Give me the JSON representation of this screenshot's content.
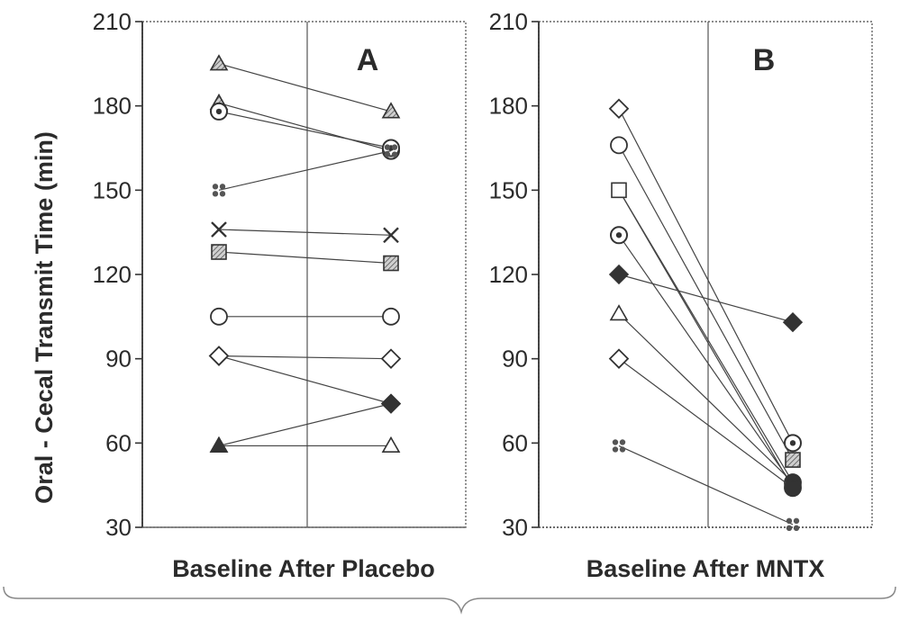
{
  "y_axis_label": "Oral - Cecal Transmit Time (min)",
  "chart_data": [
    {
      "type": "line",
      "panel_label": "A",
      "categories": [
        "Baseline",
        "After Placebo"
      ],
      "x_axis_text": "Baseline After Placebo",
      "yticks": [
        30,
        60,
        90,
        120,
        150,
        180,
        210
      ],
      "ylim": [
        30,
        210
      ],
      "series": [
        {
          "values": [
            195,
            178
          ],
          "marker": "triangle-hatched",
          "baseline_marker": "triangle-hatched"
        },
        {
          "values": [
            181,
            164
          ],
          "marker": "circle-dot",
          "baseline_marker": "triangle-hatched"
        },
        {
          "values": [
            178,
            165
          ],
          "marker": "circle-dot",
          "baseline_marker": "circle-dot"
        },
        {
          "values": [
            150,
            164
          ],
          "marker": "cross4",
          "baseline_marker": "cross4"
        },
        {
          "values": [
            136,
            134
          ],
          "marker": "x",
          "baseline_marker": "x"
        },
        {
          "values": [
            128,
            124
          ],
          "marker": "square-hatched",
          "baseline_marker": "square-hatched"
        },
        {
          "values": [
            105,
            105
          ],
          "marker": "circle-open",
          "baseline_marker": "circle-open"
        },
        {
          "values": [
            91,
            90
          ],
          "marker": "diamond-open",
          "baseline_marker": "diamond-open"
        },
        {
          "values": [
            91,
            74
          ],
          "marker": "diamond-filled",
          "baseline_marker": "diamond-open"
        },
        {
          "values": [
            59,
            74
          ],
          "marker": "diamond-filled",
          "baseline_marker": "triangle-filled"
        },
        {
          "values": [
            59,
            59
          ],
          "marker": "triangle-open",
          "baseline_marker": "triangle-filled"
        }
      ]
    },
    {
      "type": "line",
      "panel_label": "B",
      "categories": [
        "Baseline",
        "After MNTX"
      ],
      "x_axis_text": "Baseline After MNTX",
      "yticks": [
        30,
        60,
        90,
        120,
        150,
        180,
        210
      ],
      "ylim": [
        30,
        210
      ],
      "series": [
        {
          "values": [
            179,
            60
          ],
          "marker": "circle-dot",
          "baseline_marker": "diamond-open"
        },
        {
          "values": [
            166,
            54
          ],
          "marker": "square-hatched",
          "baseline_marker": "circle-open"
        },
        {
          "values": [
            150,
            46
          ],
          "marker": "circle-filled",
          "baseline_marker": "cross4"
        },
        {
          "values": [
            150,
            44
          ],
          "marker": "circle-filled",
          "baseline_marker": "square-open"
        },
        {
          "values": [
            134,
            45
          ],
          "marker": "circle-filled",
          "baseline_marker": "circle-dot"
        },
        {
          "values": [
            120,
            103
          ],
          "marker": "diamond-filled",
          "baseline_marker": "diamond-filled"
        },
        {
          "values": [
            106,
            46
          ],
          "marker": "circle-filled",
          "baseline_marker": "triangle-open"
        },
        {
          "values": [
            90,
            44
          ],
          "marker": "circle-filled",
          "baseline_marker": "diamond-open"
        },
        {
          "values": [
            59,
            31
          ],
          "marker": "cross4",
          "baseline_marker": "cross4"
        }
      ]
    }
  ]
}
